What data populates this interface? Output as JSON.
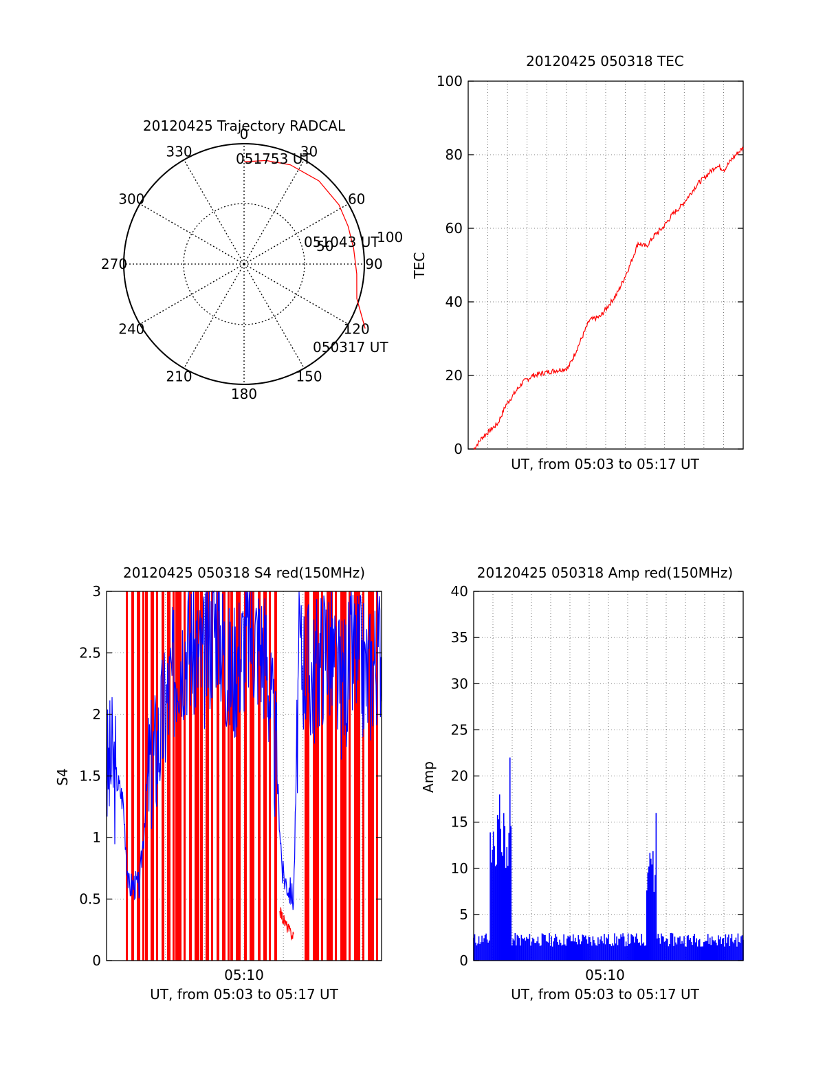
{
  "chart_data": [
    {
      "type": "polar",
      "title": "20120425 Trajectory RADCAL",
      "angle_labels": [
        "0",
        "30",
        "60",
        "90",
        "120",
        "150",
        "180",
        "210",
        "240",
        "270",
        "300",
        "330"
      ],
      "ring_labels": [
        "50",
        "100"
      ],
      "trajectory": [
        {
          "azimuth": 0,
          "zenith": 85
        },
        {
          "azimuth": 12,
          "zenith": 88
        },
        {
          "azimuth": 25,
          "zenith": 91
        },
        {
          "azimuth": 42,
          "zenith": 93
        },
        {
          "azimuth": 58,
          "zenith": 93
        },
        {
          "azimuth": 70,
          "zenith": 92
        },
        {
          "azimuth": 82,
          "zenith": 92
        },
        {
          "azimuth": 95,
          "zenith": 94
        },
        {
          "azimuth": 107,
          "zenith": 98
        },
        {
          "azimuth": 118,
          "zenith": 114
        }
      ],
      "annotations": [
        "051753 UT",
        "051043 UT",
        "050317 UT"
      ],
      "line_color": "#ff0000"
    },
    {
      "type": "line",
      "title": "20120425 050318 TEC",
      "ylabel": "TEC",
      "xlabel": "UT, from 05:03 to 05:17 UT",
      "ylim": [
        0,
        100
      ],
      "yticks": [
        "0",
        "20",
        "40",
        "60",
        "80",
        "100"
      ],
      "x": [
        0,
        0.03,
        0.06,
        0.09,
        0.12,
        0.15,
        0.18,
        0.22,
        0.28,
        0.35,
        0.37,
        0.4,
        0.43,
        0.47,
        0.5,
        0.53,
        0.55,
        0.58,
        0.61,
        0.64,
        0.67,
        0.7,
        0.72,
        0.74,
        0.77,
        0.8,
        0.83,
        0.86,
        0.9,
        0.93,
        0.96,
        1.0
      ],
      "y": [
        0,
        3,
        5,
        7,
        12,
        15,
        18,
        20,
        21,
        22,
        25,
        30,
        35,
        36,
        39,
        42,
        45,
        50,
        56,
        55,
        58,
        60,
        62,
        64,
        66,
        69,
        72,
        74,
        77,
        76,
        79,
        82
      ],
      "line_color": "#ff0000",
      "grid": true
    },
    {
      "type": "line",
      "title": "20120425 050318 S4 red(150MHz)",
      "ylabel": "S4",
      "xlabel": "UT, from 05:03 to 05:17 UT",
      "xtick_label": "05:10",
      "ylim": [
        0,
        3
      ],
      "yticks": [
        "0",
        "0.5",
        "1",
        "1.5",
        "2",
        "2.5",
        "3"
      ],
      "series": [
        {
          "color": "#0000ff",
          "x": [
            0,
            0.02,
            0.04,
            0.06,
            0.08,
            0.1,
            0.12,
            0.15,
            0.18,
            0.2,
            0.23,
            0.26,
            0.3,
            0.35,
            0.4,
            0.45,
            0.52,
            0.58,
            0.62,
            0.64,
            0.66,
            0.68,
            0.7,
            0.75,
            0.8,
            0.85,
            0.9,
            0.95,
            1.0
          ],
          "y": [
            1.5,
            1.6,
            1.45,
            1.3,
            0.6,
            0.62,
            0.6,
            1.5,
            1.7,
            1.9,
            2.2,
            2.5,
            2.6,
            2.4,
            2.8,
            2.3,
            2.7,
            2.5,
            1.5,
            0.7,
            0.6,
            0.5,
            2.5,
            2.3,
            2.6,
            2.2,
            2.5,
            2.3,
            2.6
          ]
        },
        {
          "color": "#ff0000",
          "x": [
            0.63,
            0.65,
            0.67,
            0.68
          ],
          "y": [
            0.4,
            0.3,
            0.22,
            0.2
          ]
        }
      ],
      "red_spike_x": [
        0.07,
        0.09,
        0.11,
        0.13,
        0.14,
        0.16,
        0.18,
        0.2,
        0.22,
        0.24,
        0.25,
        0.26,
        0.28,
        0.3,
        0.32,
        0.33,
        0.34,
        0.36,
        0.38,
        0.4,
        0.42,
        0.44,
        0.45,
        0.47,
        0.48,
        0.5,
        0.52,
        0.53,
        0.55,
        0.57,
        0.59,
        0.61,
        0.72,
        0.73,
        0.75,
        0.76,
        0.78,
        0.8,
        0.81,
        0.83,
        0.85,
        0.86,
        0.88,
        0.9,
        0.91,
        0.93,
        0.95,
        0.96,
        0.98
      ],
      "grid": true
    },
    {
      "type": "line",
      "title": "20120425 050318 Amp red(150MHz)",
      "ylabel": "Amp",
      "xlabel": "UT, from 05:03 to 05:17 UT",
      "xtick_label": "05:10",
      "ylim": [
        0,
        40
      ],
      "yticks": [
        "0",
        "5",
        "10",
        "15",
        "20",
        "25",
        "30",
        "35",
        "40"
      ],
      "series": [
        {
          "color": "#0000ff",
          "bursts": [
            {
              "x0": 0.06,
              "x1": 0.14,
              "level": 14,
              "peaks": [
                24,
                22,
                18
              ]
            },
            {
              "x0": 0.64,
              "x1": 0.68,
              "level": 10,
              "peaks": [
                19,
                16
              ]
            }
          ],
          "baseline": 1.5
        }
      ],
      "grid": true
    }
  ]
}
